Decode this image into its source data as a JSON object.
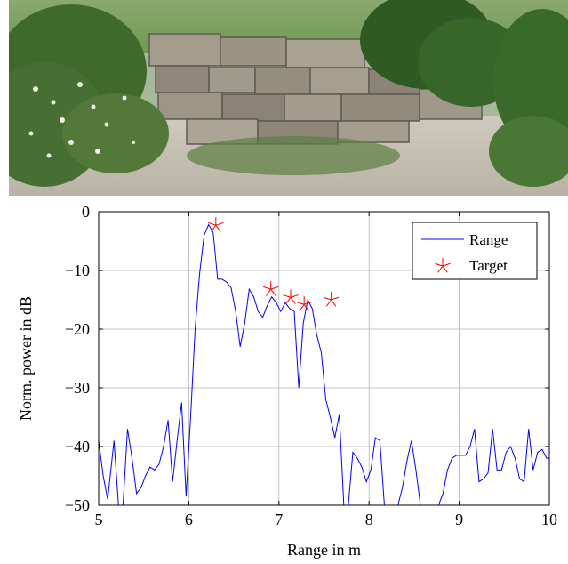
{
  "photo": {
    "subject": "dry stone wall with shrubs and gravel"
  },
  "chart_data": {
    "type": "line",
    "title": "",
    "xlabel": "Range in m",
    "ylabel": "Norm. power in dB",
    "xlim": [
      5,
      10
    ],
    "ylim": [
      -50,
      0
    ],
    "xticks": [
      5,
      6,
      7,
      8,
      9,
      10
    ],
    "xtick_labels": [
      "5",
      "6",
      "7",
      "8",
      "9",
      "10"
    ],
    "yticks": [
      0,
      -10,
      -20,
      -30,
      -40,
      -50
    ],
    "ytick_labels": [
      "0",
      "−10",
      "−20",
      "−30",
      "−40",
      "−50"
    ],
    "grid": true,
    "legend_position": "top-right",
    "series": [
      {
        "name": "Range",
        "style": "line",
        "color": "#0000ff",
        "x": [
          5.0,
          5.05,
          5.1,
          5.17,
          5.22,
          5.27,
          5.32,
          5.37,
          5.42,
          5.47,
          5.52,
          5.57,
          5.62,
          5.67,
          5.72,
          5.77,
          5.82,
          5.87,
          5.92,
          5.97,
          6.02,
          6.07,
          6.12,
          6.17,
          6.22,
          6.27,
          6.32,
          6.37,
          6.42,
          6.47,
          6.52,
          6.57,
          6.62,
          6.67,
          6.72,
          6.77,
          6.82,
          6.87,
          6.92,
          6.97,
          7.02,
          7.07,
          7.12,
          7.17,
          7.22,
          7.27,
          7.32,
          7.37,
          7.42,
          7.47,
          7.52,
          7.57,
          7.62,
          7.67,
          7.72,
          7.77,
          7.82,
          7.87,
          7.92,
          7.97,
          8.02,
          8.07,
          8.12,
          8.17,
          8.22,
          8.27,
          8.32,
          8.37,
          8.42,
          8.47,
          8.52,
          8.57,
          8.62,
          8.67,
          8.72,
          8.77,
          8.82,
          8.87,
          8.92,
          8.97,
          9.02,
          9.07,
          9.12,
          9.17,
          9.22,
          9.27,
          9.32,
          9.37,
          9.42,
          9.47,
          9.52,
          9.57,
          9.62,
          9.67,
          9.72,
          9.77,
          9.82,
          9.87,
          9.92,
          9.97,
          10.0
        ],
        "y": [
          -39,
          -45,
          -49,
          -39,
          -50,
          -50,
          -37,
          -42,
          -48,
          -47,
          -45,
          -43.5,
          -44,
          -43,
          -40,
          -35.5,
          -46,
          -39,
          -32.5,
          -48.5,
          -35,
          -20,
          -10.5,
          -4,
          -2.2,
          -3.5,
          -11.5,
          -11.5,
          -12,
          -13,
          -17,
          -23,
          -19,
          -13.2,
          -14.5,
          -17,
          -18,
          -16,
          -14.5,
          -15.5,
          -17,
          -15.5,
          -16.5,
          -17,
          -30,
          -19,
          -15,
          -16.5,
          -21,
          -24,
          -32,
          -35,
          -38.5,
          -34.5,
          -50,
          -50,
          -41,
          -42,
          -43.5,
          -46,
          -44,
          -38.5,
          -39,
          -50,
          -50,
          -50,
          -50,
          -47,
          -42.5,
          -39,
          -44,
          -50,
          -50,
          -50,
          -50,
          -50,
          -48,
          -44,
          -42,
          -41.5,
          -41.5,
          -41.5,
          -40,
          -37,
          -46,
          -45.5,
          -44.5,
          -37,
          -44,
          -44,
          -41,
          -40,
          -42,
          -45.5,
          -46,
          -37,
          -44,
          -41,
          -40.5,
          -42,
          -42
        ]
      },
      {
        "name": "Target",
        "style": "marker",
        "marker": "star",
        "color": "#ff0000",
        "x": [
          6.3,
          6.91,
          7.13,
          7.28,
          7.58
        ],
        "y": [
          -2.3,
          -13.2,
          -14.6,
          -15.8,
          -15.0
        ]
      }
    ]
  }
}
